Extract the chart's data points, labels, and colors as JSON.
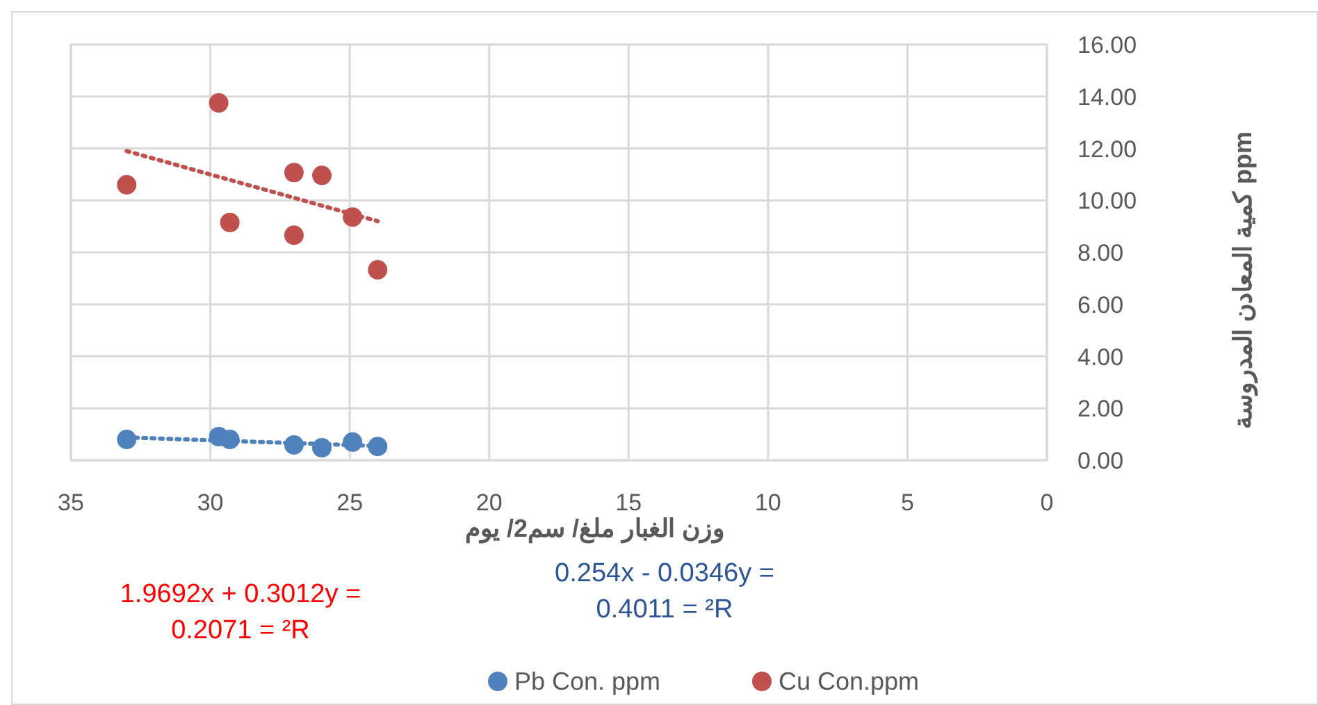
{
  "chart_data": {
    "type": "scatter",
    "xlabel": "وزن الغبار ملغ/ سم2/ يوم",
    "ylabel": "كمية المعادن المدروسة ppm",
    "xlim": [
      35,
      0
    ],
    "xticks": [
      35,
      30,
      25,
      20,
      15,
      10,
      5,
      0
    ],
    "ylim": [
      0,
      16
    ],
    "yticks": [
      {
        "value": 0,
        "label": "0.00"
      },
      {
        "value": 2,
        "label": "2.00"
      },
      {
        "value": 4,
        "label": "4.00"
      },
      {
        "value": 6,
        "label": "6.00"
      },
      {
        "value": 8,
        "label": "8.00"
      },
      {
        "value": 10,
        "label": "10.00"
      },
      {
        "value": 12,
        "label": "12.00"
      },
      {
        "value": 14,
        "label": "14.00"
      },
      {
        "value": 16,
        "label": "16.00"
      }
    ],
    "grid": true,
    "legend": "bottom",
    "marker": "circle",
    "series": [
      {
        "name": "Pb Con. ppm",
        "color": "#4f81bd",
        "x": [
          33,
          29.7,
          29.3,
          27,
          26,
          24.9,
          24
        ],
        "values": [
          0.8,
          0.91,
          0.8,
          0.59,
          0.48,
          0.7,
          0.53
        ]
      },
      {
        "name": "Cu Con.ppm",
        "color": "#c0504d",
        "x": [
          33,
          29.7,
          29.3,
          27,
          27,
          26,
          24.9,
          24
        ],
        "values": [
          10.6,
          13.75,
          9.15,
          11.07,
          8.66,
          10.96,
          9.36,
          7.33
        ]
      },
      {
        "type": "line",
        "color": "#4f81bd",
        "marker": "none",
        "line_style": "dotted",
        "x": [
          33,
          24
        ],
        "values": [
          0.88,
          0.55
        ]
      },
      {
        "type": "line",
        "color": "#c0504d",
        "marker": "none",
        "line_style": "dotted",
        "x": [
          33,
          24
        ],
        "values": [
          11.9,
          9.2
        ]
      }
    ],
    "annotations": [
      "1.9692x + 0.3012y =\n0.2071 = ²R",
      "0.254x - 0.0346y =\n0.4011 = ²R"
    ]
  }
}
